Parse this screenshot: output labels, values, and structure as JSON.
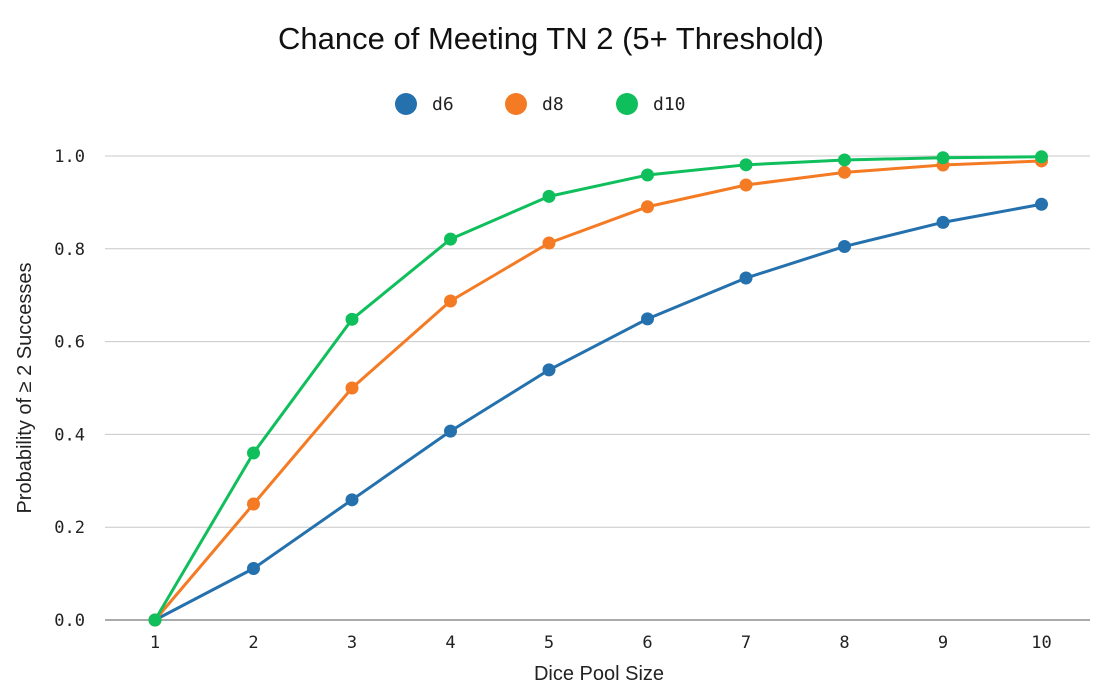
{
  "chart_data": {
    "type": "line",
    "title": "Chance of Meeting TN 2 (5+ Threshold)",
    "xlabel": "Dice Pool Size",
    "ylabel": "Probability of ≥ 2 Successes",
    "x": [
      1,
      2,
      3,
      4,
      5,
      6,
      7,
      8,
      9,
      10
    ],
    "x_tick_labels": [
      "1",
      "2",
      "3",
      "4",
      "5",
      "6",
      "7",
      "8",
      "9",
      "10"
    ],
    "ylim": [
      0,
      1.0
    ],
    "y_ticks": [
      0.0,
      0.2,
      0.4,
      0.6,
      0.8,
      1.0
    ],
    "y_tick_labels": [
      "0.0",
      "0.2",
      "0.4",
      "0.6",
      "0.8",
      "1.0"
    ],
    "grid": true,
    "legend_position": "top-center",
    "series": [
      {
        "name": "d6",
        "color": "#2471ad",
        "values": [
          0.0,
          0.111,
          0.259,
          0.407,
          0.539,
          0.649,
          0.737,
          0.805,
          0.857,
          0.896
        ]
      },
      {
        "name": "d8",
        "color": "#f47b24",
        "values": [
          0.0,
          0.25,
          0.5,
          0.6875,
          0.8125,
          0.8906,
          0.9375,
          0.9648,
          0.9805,
          0.9893
        ]
      },
      {
        "name": "d10",
        "color": "#0fbf5c",
        "values": [
          0.0,
          0.36,
          0.648,
          0.8208,
          0.913,
          0.959,
          0.981,
          0.9915,
          0.9962,
          0.9983
        ]
      }
    ]
  }
}
